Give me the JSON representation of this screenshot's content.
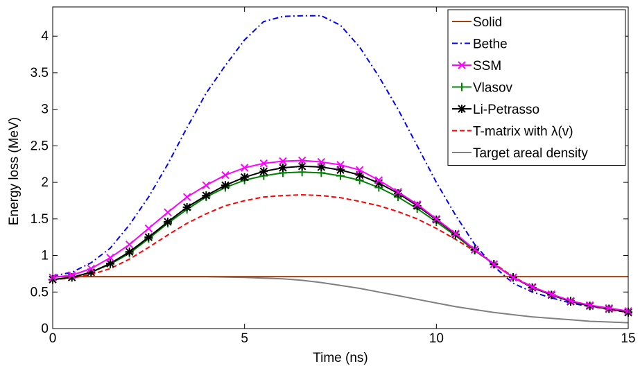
{
  "chart_data": {
    "type": "line",
    "xlabel": "Time (ns)",
    "ylabel": "Energy loss (MeV)",
    "xlim": [
      0,
      15
    ],
    "ylim": [
      0,
      4.4
    ],
    "xticks": [
      0,
      5,
      10,
      15
    ],
    "xtick_labels": [
      "0",
      "5",
      "10",
      "15"
    ],
    "yticks": [
      0,
      0.5,
      1,
      1.5,
      2,
      2.5,
      3,
      3.5,
      4
    ],
    "ytick_labels": [
      "0",
      "0.5",
      "1",
      "1.5",
      "2",
      "2.5",
      "3",
      "3.5",
      "4"
    ],
    "grid": false,
    "legend_position": "top-right",
    "series": [
      {
        "name": "Solid",
        "color": "#a0400c",
        "style": "solid",
        "marker": "none",
        "x": [
          0,
          15
        ],
        "y": [
          0.71,
          0.71
        ]
      },
      {
        "name": "Bethe",
        "color": "#0000ff",
        "style": "dashdot",
        "marker": "none",
        "x": [
          0,
          0.5,
          1,
          1.5,
          2,
          2.5,
          3,
          3.5,
          4,
          4.5,
          5,
          5.5,
          6,
          6.5,
          7,
          7.5,
          8,
          8.5,
          9,
          9.5,
          10,
          10.5,
          11,
          11.5,
          12,
          12.5,
          13,
          13.5,
          14,
          14.5,
          15
        ],
        "y": [
          0.72,
          0.77,
          0.9,
          1.1,
          1.42,
          1.8,
          2.25,
          2.75,
          3.22,
          3.6,
          3.95,
          4.2,
          4.27,
          4.28,
          4.28,
          4.15,
          3.85,
          3.45,
          3.0,
          2.5,
          2.0,
          1.55,
          1.15,
          0.85,
          0.62,
          0.5,
          0.42,
          0.35,
          0.3,
          0.27,
          0.24
        ]
      },
      {
        "name": "SSM",
        "color": "#ff00ff",
        "style": "solid",
        "marker": "x",
        "x": [
          0,
          0.5,
          1,
          1.5,
          2,
          2.5,
          3,
          3.5,
          4,
          4.5,
          5,
          5.5,
          6,
          6.5,
          7,
          7.5,
          8,
          8.5,
          9,
          9.5,
          10,
          10.5,
          11,
          11.5,
          12,
          12.5,
          13,
          13.5,
          14,
          14.5,
          15
        ],
        "y": [
          0.7,
          0.73,
          0.82,
          0.97,
          1.15,
          1.37,
          1.59,
          1.8,
          1.96,
          2.1,
          2.2,
          2.26,
          2.29,
          2.3,
          2.28,
          2.24,
          2.17,
          2.03,
          1.87,
          1.7,
          1.5,
          1.3,
          1.08,
          0.88,
          0.7,
          0.57,
          0.47,
          0.38,
          0.32,
          0.28,
          0.24
        ]
      },
      {
        "name": "Vlasov",
        "color": "#008000",
        "style": "solid",
        "marker": "+",
        "x": [
          0,
          0.5,
          1,
          1.5,
          2,
          2.5,
          3,
          3.5,
          4,
          4.5,
          5,
          5.5,
          6,
          6.5,
          7,
          7.5,
          8,
          8.5,
          9,
          9.5,
          10,
          10.5,
          11,
          11.5,
          12,
          12.5,
          13,
          13.5,
          14,
          14.5,
          15
        ],
        "y": [
          0.67,
          0.7,
          0.77,
          0.88,
          1.03,
          1.23,
          1.44,
          1.63,
          1.8,
          1.93,
          2.03,
          2.09,
          2.13,
          2.14,
          2.13,
          2.09,
          2.03,
          1.93,
          1.8,
          1.64,
          1.46,
          1.27,
          1.07,
          0.88,
          0.7,
          0.56,
          0.46,
          0.38,
          0.31,
          0.27,
          0.23
        ]
      },
      {
        "name": "Li-Petrasso",
        "color": "#000000",
        "style": "solid",
        "marker": "asterisk",
        "x": [
          0,
          0.5,
          1,
          1.5,
          2,
          2.5,
          3,
          3.5,
          4,
          4.5,
          5,
          5.5,
          6,
          6.5,
          7,
          7.5,
          8,
          8.5,
          9,
          9.5,
          10,
          10.5,
          11,
          11.5,
          12,
          12.5,
          13,
          13.5,
          14,
          14.5,
          15
        ],
        "y": [
          0.67,
          0.7,
          0.77,
          0.89,
          1.05,
          1.25,
          1.46,
          1.66,
          1.82,
          1.96,
          2.07,
          2.15,
          2.2,
          2.22,
          2.21,
          2.17,
          2.1,
          1.99,
          1.85,
          1.68,
          1.49,
          1.29,
          1.08,
          0.88,
          0.7,
          0.56,
          0.46,
          0.37,
          0.31,
          0.27,
          0.22
        ]
      },
      {
        "name": "T-matrix with λ(v)",
        "color": "#ff0000",
        "style": "dashed",
        "marker": "none",
        "x": [
          0,
          0.5,
          1,
          1.5,
          2,
          2.5,
          3,
          3.5,
          4,
          4.5,
          5,
          5.5,
          6,
          6.5,
          7,
          7.5,
          8,
          8.5,
          9,
          9.5,
          10,
          10.5,
          11,
          11.5,
          12,
          12.5,
          13,
          13.5,
          14,
          14.5,
          15
        ],
        "y": [
          0.67,
          0.69,
          0.74,
          0.82,
          0.95,
          1.11,
          1.28,
          1.44,
          1.57,
          1.68,
          1.75,
          1.8,
          1.82,
          1.83,
          1.82,
          1.79,
          1.74,
          1.68,
          1.6,
          1.5,
          1.37,
          1.22,
          1.06,
          0.89,
          0.71,
          0.57,
          0.47,
          0.38,
          0.31,
          0.26,
          0.22
        ]
      },
      {
        "name": "Target areal density",
        "color": "#808080",
        "style": "solid",
        "marker": "none",
        "x": [
          0,
          1,
          2,
          3,
          4,
          5,
          5.5,
          6,
          6.5,
          7,
          7.5,
          8,
          8.5,
          9,
          9.5,
          10,
          10.5,
          11,
          11.5,
          12,
          12.5,
          13,
          13.5,
          14,
          14.5,
          15
        ],
        "y": [
          0.71,
          0.71,
          0.71,
          0.71,
          0.71,
          0.7,
          0.69,
          0.68,
          0.66,
          0.63,
          0.59,
          0.55,
          0.5,
          0.45,
          0.4,
          0.35,
          0.3,
          0.26,
          0.22,
          0.19,
          0.16,
          0.14,
          0.12,
          0.1,
          0.09,
          0.08
        ]
      }
    ]
  }
}
